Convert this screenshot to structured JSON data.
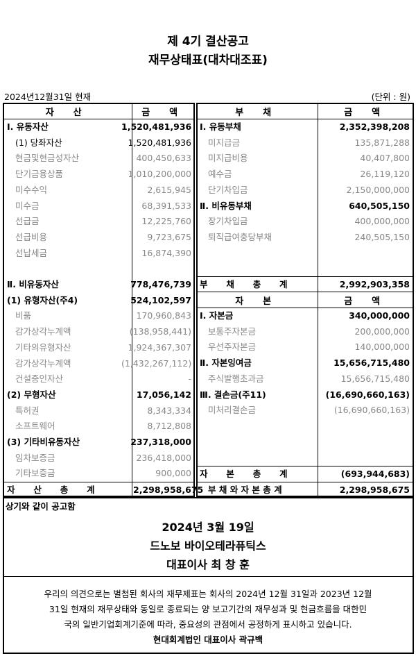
{
  "header": {
    "title1": "제 4기 결산공고",
    "title2": "재무상태표(대차대조표)",
    "date": "2024년12월31일 현재",
    "unit": "(단위 : 원)"
  },
  "columns": {
    "asset": "자 산",
    "amount": "금 액",
    "liability": "부 채",
    "equity": "자 본"
  },
  "assets": [
    {
      "label": "Ⅰ. 유동자산",
      "amount": "1,520,481,936",
      "style": "b"
    },
    {
      "label": "(1) 당좌자산",
      "amount": "1,520,481,936",
      "style": "n"
    },
    {
      "label": "현금및현금성자산",
      "amount": "400,450,633",
      "style": "g"
    },
    {
      "label": "단기금융상품",
      "amount": "1,010,200,000",
      "style": "g"
    },
    {
      "label": "미수수익",
      "amount": "2,615,945",
      "style": "g"
    },
    {
      "label": "미수금",
      "amount": "68,391,533",
      "style": "g"
    },
    {
      "label": "선급금",
      "amount": "12,225,760",
      "style": "g"
    },
    {
      "label": "선급비용",
      "amount": "9,723,675",
      "style": "g"
    },
    {
      "label": "선납세금",
      "amount": "16,874,390",
      "style": "g"
    },
    {
      "label": "",
      "amount": "",
      "style": "g"
    },
    {
      "label": "Ⅱ. 비유동자산",
      "amount": "778,476,739",
      "style": "b"
    },
    {
      "label": "(1) 유형자산(주4)",
      "amount": "524,102,597",
      "style": "b"
    },
    {
      "label": "비품",
      "amount": "170,960,843",
      "style": "g"
    },
    {
      "label": "감가상각누계액",
      "amount": "(138,958,441)",
      "style": "g"
    },
    {
      "label": "기타의유형자산",
      "amount": "1,924,367,307",
      "style": "g"
    },
    {
      "label": "감가상각누계액",
      "amount": "(1,432,267,112)",
      "style": "g"
    },
    {
      "label": "건설중인자산",
      "amount": "-",
      "style": "g"
    },
    {
      "label": "(2) 무형자산",
      "amount": "17,056,142",
      "style": "b"
    },
    {
      "label": "특허권",
      "amount": "8,343,334",
      "style": "g"
    },
    {
      "label": "소프트웨어",
      "amount": "8,712,808",
      "style": "g"
    },
    {
      "label": "(3) 기타비유동자산",
      "amount": "237,318,000",
      "style": "b"
    },
    {
      "label": "임차보증금",
      "amount": "236,418,000",
      "style": "g"
    },
    {
      "label": "기타보증금",
      "amount": "900,000",
      "style": "g"
    }
  ],
  "asset_total": {
    "label": "자 산 총 계",
    "amount": "2,298,958,675"
  },
  "liabilities": [
    {
      "label": "Ⅰ. 유동부채",
      "amount": "2,352,398,208",
      "style": "b"
    },
    {
      "label": "미지급금",
      "amount": "135,871,288",
      "style": "g"
    },
    {
      "label": "미지급비용",
      "amount": "40,407,800",
      "style": "g"
    },
    {
      "label": "예수금",
      "amount": "26,119,120",
      "style": "g"
    },
    {
      "label": "단기차입금",
      "amount": "2,150,000,000",
      "style": "g"
    },
    {
      "label": "Ⅱ. 비유동부채",
      "amount": "640,505,150",
      "style": "b"
    },
    {
      "label": "장기차입금",
      "amount": "400,000,000",
      "style": "g"
    },
    {
      "label": "퇴직급여충당부채",
      "amount": "240,505,150",
      "style": "g"
    }
  ],
  "liability_total": {
    "label": "부 채 총 계",
    "amount": "2,992,903,358"
  },
  "equity": [
    {
      "label": "Ⅰ. 자본금",
      "amount": "340,000,000",
      "style": "b"
    },
    {
      "label": "보통주자본금",
      "amount": "200,000,000",
      "style": "g"
    },
    {
      "label": "우선주자본금",
      "amount": "140,000,000",
      "style": "g"
    },
    {
      "label": "Ⅱ. 자본잉여금",
      "amount": "15,656,715,480",
      "style": "b"
    },
    {
      "label": "주식발행초과금",
      "amount": "15,656,715,480",
      "style": "g"
    },
    {
      "label": "Ⅲ. 결손금(주11)",
      "amount": "(16,690,660,163)",
      "style": "b"
    },
    {
      "label": "미처리결손금",
      "amount": "(16,690,660,163)",
      "style": "g"
    }
  ],
  "equity_total": {
    "label": "자 본 총 계",
    "amount": "(693,944,683)"
  },
  "grand_total": {
    "label": "부 채 와 자 본 총 계",
    "amount": "2,298,958,675"
  },
  "footer": {
    "notice": "상기와 같이 공고함",
    "date": "2024년 3월 19일",
    "company": "드노보 바이오테라퓨틱스",
    "ceo": "대표이사 최 창 훈",
    "opinion1": "우리의 의견으로는 별첨된 회사의 재무제표는 회사의 2024년 12월 31일과 2023년 12월",
    "opinion2": "31일 현재의 재무상태와 동일로 종료되는 양 보고기간의 재무성과 및 현금흐름을 대한민",
    "opinion3": "국의 일반기업회계기준에 따라, 중요성의 관점에서 공정하게 표시하고 있습니다.",
    "auditor": "현대회계법인 대표이사 곽규백"
  }
}
